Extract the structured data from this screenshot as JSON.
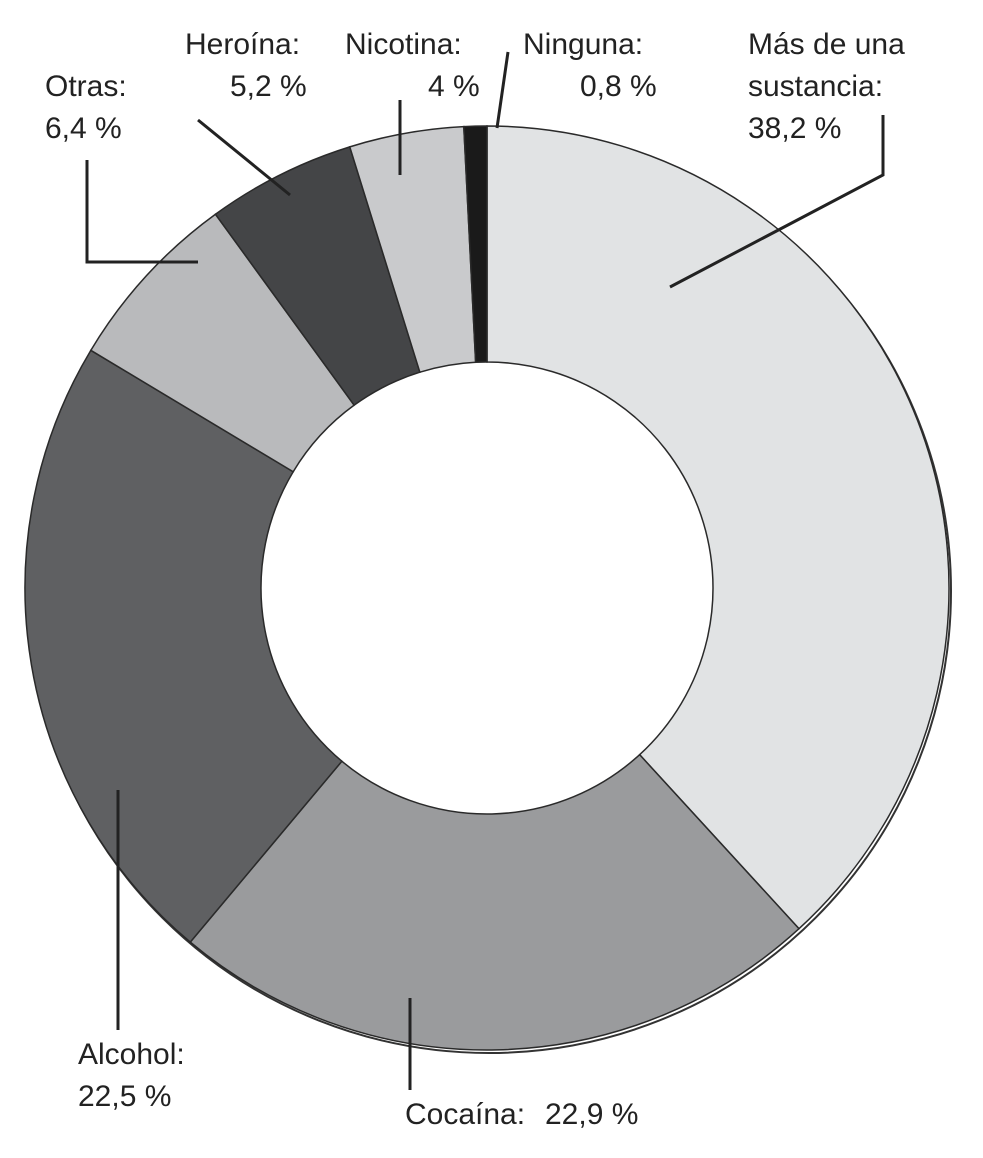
{
  "chart_data": {
    "type": "donut",
    "categories": [
      "Más de una sustancia:",
      "Cocaína:",
      "Alcohol:",
      "Otras:",
      "Heroína:",
      "Nicotina:",
      "Ninguna:"
    ],
    "values": [
      38.2,
      22.9,
      22.5,
      6.4,
      5.2,
      4,
      0.8
    ],
    "value_labels": [
      "38,2 %",
      "22,9 %",
      "22,5 %",
      "6,4 %",
      "5,2 %",
      "4 %",
      "0,8 %"
    ],
    "colors": [
      "#e1e3e4",
      "#9a9b9d",
      "#5f6062",
      "#b9babc",
      "#444547",
      "#c9cacc",
      "#1a1a1a"
    ]
  }
}
